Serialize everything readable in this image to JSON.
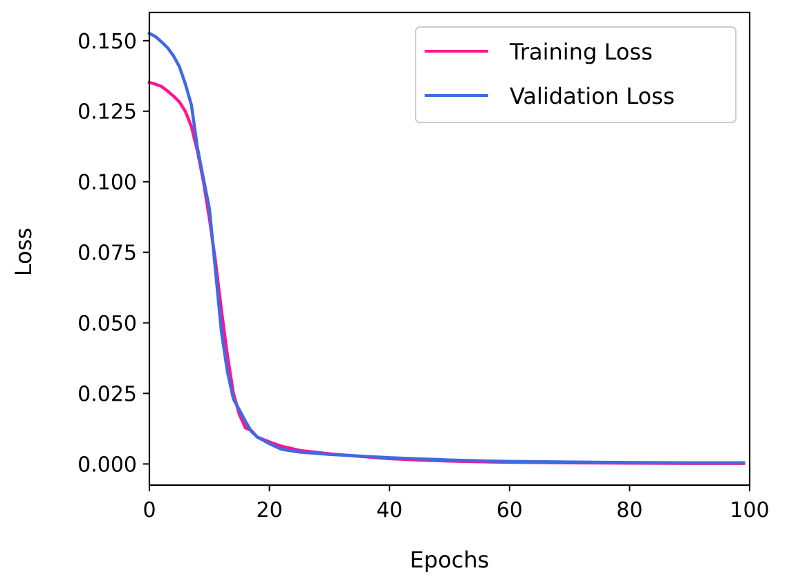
{
  "chart_data": {
    "type": "line",
    "title": "",
    "xlabel": "Epochs",
    "ylabel": "Loss",
    "xlim": [
      0,
      100
    ],
    "ylim": [
      -0.0075,
      0.16
    ],
    "xticks": [
      0,
      20,
      40,
      60,
      80,
      100
    ],
    "xtick_labels": [
      "0",
      "20",
      "40",
      "60",
      "80",
      "100"
    ],
    "yticks": [
      0.0,
      0.025,
      0.05,
      0.075,
      0.1,
      0.125,
      0.15
    ],
    "ytick_labels": [
      "0.000",
      "0.025",
      "0.050",
      "0.075",
      "0.100",
      "0.125",
      "0.150"
    ],
    "grid": false,
    "legend_position": "top-right",
    "series": [
      {
        "name": "Training Loss",
        "color": "#ff1493",
        "x": [
          0,
          1,
          2,
          3,
          4,
          5,
          6,
          7,
          8,
          9,
          10,
          11,
          12,
          13,
          14,
          15,
          16,
          17,
          18,
          20,
          22,
          25,
          30,
          35,
          40,
          45,
          50,
          55,
          60,
          70,
          80,
          90,
          99
        ],
        "y": [
          0.1352,
          0.1346,
          0.1338,
          0.1322,
          0.1304,
          0.1283,
          0.1249,
          0.1195,
          0.111,
          0.1002,
          0.087,
          0.072,
          0.0545,
          0.0385,
          0.025,
          0.0175,
          0.0128,
          0.0118,
          0.0095,
          0.0078,
          0.0063,
          0.0048,
          0.0036,
          0.0027,
          0.0019,
          0.0014,
          0.001,
          0.0008,
          0.0006,
          0.0004,
          0.0003,
          0.0002,
          0.0002
        ]
      },
      {
        "name": "Validation Loss",
        "color": "#4169e1",
        "x": [
          0,
          1,
          2,
          3,
          4,
          5,
          6,
          7,
          8,
          9,
          10,
          11,
          12,
          13,
          14,
          15,
          16,
          17,
          18,
          20,
          22,
          25,
          30,
          35,
          40,
          45,
          50,
          55,
          60,
          70,
          80,
          90,
          99
        ],
        "y": [
          0.1526,
          0.1515,
          0.1496,
          0.1476,
          0.1447,
          0.1408,
          0.1346,
          0.1272,
          0.1122,
          0.1012,
          0.0905,
          0.0688,
          0.0468,
          0.0328,
          0.023,
          0.0191,
          0.0151,
          0.0115,
          0.0095,
          0.0072,
          0.0052,
          0.0042,
          0.0034,
          0.0028,
          0.0022,
          0.0018,
          0.0014,
          0.0011,
          0.0009,
          0.0007,
          0.0005,
          0.0004,
          0.0004
        ]
      }
    ]
  }
}
